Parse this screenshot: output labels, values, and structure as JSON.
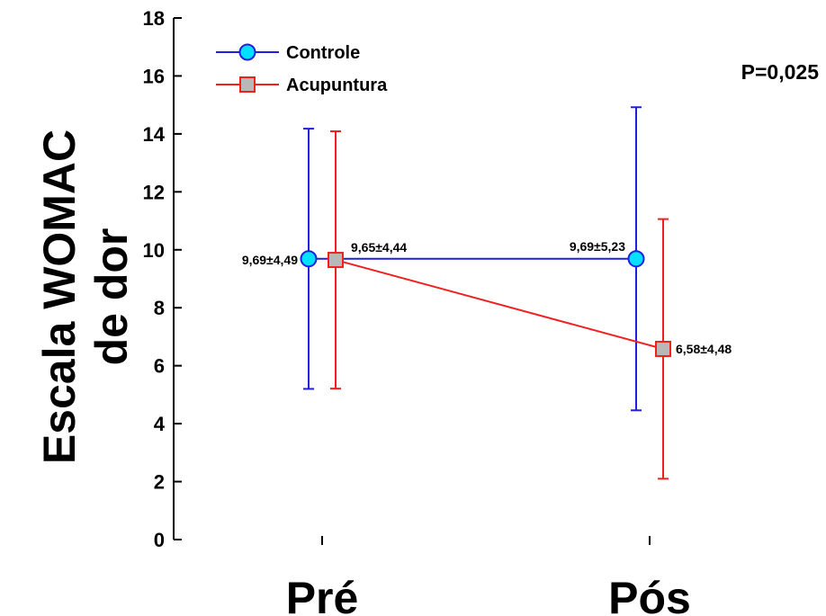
{
  "chart_data": {
    "type": "line",
    "title": "",
    "ylabel": [
      "Escala WOMAC",
      "de dor"
    ],
    "xlabel": "",
    "categories": [
      "Pré",
      "Pós"
    ],
    "ylim": [
      0,
      18
    ],
    "yticks": [
      "0",
      "2",
      "4",
      "6",
      "8",
      "10",
      "12",
      "14",
      "16",
      "18"
    ],
    "annotation": "P=0,025",
    "grid": false,
    "legend_position": "top-left",
    "series": [
      {
        "name": "Controle",
        "marker": "circle",
        "color": "#1f1fe0",
        "fill": "#00e0ff",
        "values": [
          9.69,
          9.69
        ],
        "error_low": [
          5.2,
          4.46
        ],
        "error_high": [
          14.18,
          14.92
        ],
        "labels": [
          "9,69±4,49",
          "9,69±5,23"
        ]
      },
      {
        "name": "Acupuntura",
        "marker": "square",
        "color": "#f02020",
        "fill": "#b8b8b8",
        "values": [
          9.65,
          6.58
        ],
        "error_low": [
          5.21,
          2.1
        ],
        "error_high": [
          14.09,
          11.06
        ],
        "labels": [
          "9,65±4,44",
          "6,58±4,48"
        ]
      }
    ]
  }
}
